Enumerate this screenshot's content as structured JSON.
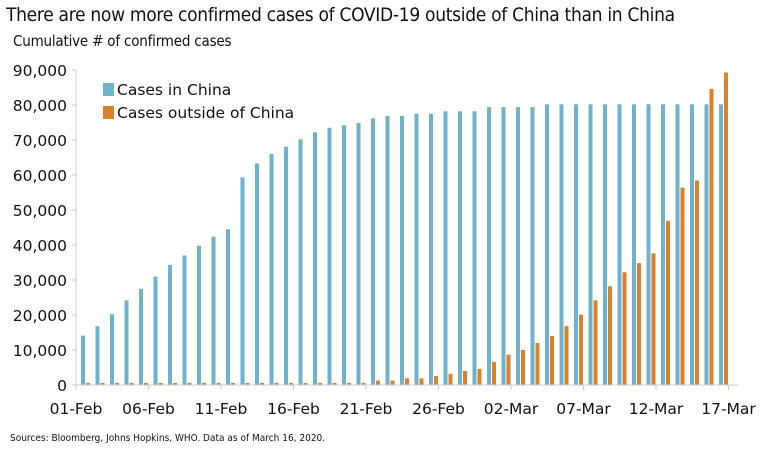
{
  "chart_data": {
    "type": "bar",
    "title": "There are now more confirmed cases of COVID-19 outside of China than in China",
    "subtitle": "Cumulative # of confirmed cases",
    "source": "Sources: Bloomberg, Johns Hopkins, WHO. Data as of March 16, 2020.",
    "ylim": [
      0,
      90000
    ],
    "y_ticks": [
      "0",
      "10,000",
      "20,000",
      "30,000",
      "40,000",
      "50,000",
      "60,000",
      "70,000",
      "80,000",
      "90,000"
    ],
    "x_tick_labels": [
      "01-Feb",
      "06-Feb",
      "11-Feb",
      "16-Feb",
      "21-Feb",
      "26-Feb",
      "02-Mar",
      "07-Mar",
      "12-Mar",
      "17-Mar"
    ],
    "categories": [
      "01-Feb",
      "02-Feb",
      "03-Feb",
      "04-Feb",
      "05-Feb",
      "06-Feb",
      "07-Feb",
      "08-Feb",
      "09-Feb",
      "10-Feb",
      "11-Feb",
      "12-Feb",
      "13-Feb",
      "14-Feb",
      "15-Feb",
      "16-Feb",
      "17-Feb",
      "18-Feb",
      "19-Feb",
      "20-Feb",
      "21-Feb",
      "22-Feb",
      "23-Feb",
      "24-Feb",
      "25-Feb",
      "26-Feb",
      "27-Feb",
      "28-Feb",
      "29-Feb",
      "01-Mar",
      "02-Mar",
      "03-Mar",
      "04-Mar",
      "05-Mar",
      "06-Mar",
      "07-Mar",
      "08-Mar",
      "09-Mar",
      "10-Mar",
      "11-Mar",
      "12-Mar",
      "13-Mar",
      "14-Mar",
      "15-Mar",
      "16-Mar"
    ],
    "legend_position": "top-left",
    "grid": false,
    "series": [
      {
        "name": "Cases in China",
        "color": "#6fb2cb",
        "values": [
          14100,
          16800,
          20200,
          24200,
          27500,
          31000,
          34300,
          37000,
          39800,
          42400,
          44500,
          59300,
          63300,
          66000,
          68100,
          70200,
          72200,
          73500,
          74200,
          74900,
          76200,
          76900,
          76900,
          77500,
          77500,
          78200,
          78200,
          78200,
          79400,
          79400,
          79400,
          79400,
          80200,
          80200,
          80200,
          80200,
          80200,
          80200,
          80200,
          80200,
          80200,
          80200,
          80200,
          80200,
          80200
        ]
      },
      {
        "name": "Cases outside of China",
        "color": "#d9822b",
        "values": [
          600,
          600,
          600,
          600,
          600,
          600,
          600,
          600,
          600,
          600,
          600,
          600,
          600,
          600,
          600,
          600,
          600,
          600,
          600,
          600,
          1250,
          1250,
          1900,
          1900,
          2600,
          3200,
          4000,
          4600,
          6600,
          8700,
          10000,
          12000,
          14000,
          16800,
          20100,
          24200,
          28200,
          32200,
          34800,
          37600,
          46900,
          56400,
          58400,
          84600,
          89300
        ]
      }
    ]
  }
}
